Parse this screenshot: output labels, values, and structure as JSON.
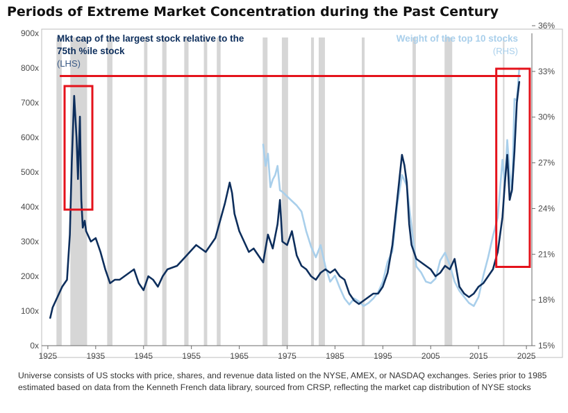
{
  "title": "Periods of Extreme Market Concentration during the Past Century",
  "footnote": "Universe consists of US stocks with price, shares, and revenue data listed on the NYSE, AMEX, or NASDAQ exchanges. Series prior to 1985 estimated based on data from the Kenneth French data library, sourced from CRSP, reflecting the market cap distribution of NYSE stocks",
  "chart_data": {
    "type": "line",
    "x_ticks": [
      "1925",
      "1935",
      "1945",
      "1955",
      "1965",
      "1975",
      "1985",
      "1995",
      "2005",
      "2015",
      "2025"
    ],
    "xlim": [
      1924,
      2026
    ],
    "y_left": {
      "ticks": [
        "0x",
        "100x",
        "200x",
        "300x",
        "400x",
        "500x",
        "600x",
        "700x",
        "800x",
        "900x"
      ],
      "lim": [
        0,
        900
      ]
    },
    "y_right": {
      "ticks": [
        "15%",
        "18%",
        "21%",
        "24%",
        "27%",
        "30%",
        "33%",
        "36%"
      ],
      "lim": [
        15,
        35.5
      ]
    },
    "legend_left": {
      "line1": "Mkt cap of the largest stock relative to the",
      "line2": "75th %ile stock",
      "line3": "(LHS)",
      "color": "#0d2e5c"
    },
    "legend_right": {
      "line1": "Weight of the top 10 stocks",
      "line2": "(RHS)",
      "color": "#a9cfeb"
    },
    "recessions": [
      [
        1926.8,
        1927.9
      ],
      [
        1929.7,
        1933.2
      ],
      [
        1937.4,
        1938.5
      ],
      [
        1945.1,
        1945.8
      ],
      [
        1948.9,
        1949.8
      ],
      [
        1953.5,
        1954.4
      ],
      [
        1957.6,
        1958.3
      ],
      [
        1960.3,
        1961.1
      ],
      [
        1969.9,
        1970.9
      ],
      [
        1973.9,
        1975.2
      ],
      [
        1980.0,
        1980.6
      ],
      [
        1981.6,
        1982.9
      ],
      [
        1990.6,
        1991.2
      ],
      [
        2001.2,
        2001.9
      ],
      [
        2007.9,
        2009.5
      ],
      [
        2020.1,
        2020.4
      ]
    ],
    "series": [
      {
        "name": "Mkt cap of the largest stock relative to the 75th %ile stock",
        "axis": "left",
        "color": "#0d2e5c",
        "x": [
          1925.5,
          1926,
          1927,
          1928,
          1929,
          1929.6,
          1930,
          1930.5,
          1931,
          1931.3,
          1931.7,
          1932,
          1932.3,
          1932.7,
          1933,
          1934,
          1935,
          1936,
          1937,
          1938,
          1939,
          1940,
          1942,
          1943,
          1944,
          1945,
          1946,
          1947,
          1948,
          1949,
          1950,
          1952,
          1954,
          1956,
          1958,
          1960,
          1961,
          1962,
          1963,
          1963.5,
          1964,
          1965,
          1966,
          1967,
          1968,
          1969,
          1970,
          1971,
          1972,
          1973,
          1973.5,
          1974,
          1975,
          1976,
          1977,
          1978,
          1979,
          1980,
          1981,
          1982,
          1983,
          1984,
          1985,
          1986,
          1987,
          1988,
          1989,
          1990,
          1991,
          1992,
          1993,
          1994,
          1995,
          1996,
          1997,
          1998,
          1999,
          1999.5,
          2000,
          2000.5,
          2001,
          2002,
          2003,
          2004,
          2005,
          2006,
          2007,
          2008,
          2009,
          2010,
          2011,
          2012,
          2013,
          2014,
          2015,
          2016,
          2017,
          2018,
          2019,
          2020,
          2020.5,
          2021,
          2021.5,
          2022,
          2022.5,
          2023,
          2023.5
        ],
        "values": [
          80,
          110,
          140,
          170,
          190,
          320,
          530,
          720,
          600,
          480,
          660,
          420,
          340,
          360,
          330,
          300,
          310,
          270,
          220,
          180,
          190,
          190,
          210,
          220,
          180,
          160,
          200,
          190,
          170,
          200,
          220,
          230,
          260,
          290,
          270,
          310,
          360,
          410,
          470,
          440,
          380,
          330,
          300,
          270,
          280,
          260,
          240,
          320,
          280,
          350,
          420,
          300,
          290,
          330,
          260,
          230,
          220,
          200,
          190,
          210,
          220,
          210,
          220,
          200,
          190,
          150,
          130,
          120,
          130,
          140,
          150,
          150,
          170,
          210,
          290,
          420,
          550,
          520,
          470,
          350,
          290,
          250,
          240,
          230,
          220,
          200,
          210,
          230,
          220,
          250,
          170,
          150,
          140,
          150,
          170,
          180,
          200,
          220,
          270,
          370,
          470,
          550,
          420,
          450,
          560,
          700,
          760
        ]
      },
      {
        "name": "Weight of the top 10 stocks",
        "axis": "right",
        "color": "#a9cfeb",
        "x": [
          1970,
          1970.5,
          1971,
          1971.5,
          1972,
          1972.5,
          1973,
          1973.5,
          1974,
          1975,
          1976,
          1977,
          1978,
          1979,
          1980,
          1981,
          1982,
          1983,
          1984,
          1985,
          1986,
          1987,
          1988,
          1989,
          1990,
          1991,
          1992,
          1993,
          1994,
          1995,
          1996,
          1997,
          1998,
          1999,
          2000,
          2001,
          2002,
          2003,
          2004,
          2005,
          2006,
          2007,
          2008,
          2009,
          2010,
          2011,
          2012,
          2013,
          2014,
          2015,
          2016,
          2017,
          2018,
          2019,
          2020,
          2020.5,
          2021,
          2021.5,
          2022,
          2022.5,
          2023,
          2023.5
        ],
        "values": [
          28.2,
          26.8,
          27.6,
          25.4,
          25.9,
          26.2,
          26.8,
          25.2,
          25.1,
          24.8,
          24.5,
          24.2,
          23.8,
          22.5,
          21.5,
          20.8,
          21.6,
          20.2,
          19.2,
          19.6,
          18.8,
          18.1,
          17.7,
          18.1,
          17.9,
          17.6,
          17.8,
          18.1,
          18.5,
          19.2,
          20.5,
          21.2,
          24.2,
          26.2,
          25.5,
          22.8,
          20.2,
          19.8,
          19.2,
          19.1,
          19.4,
          20.6,
          21.1,
          20.3,
          19.2,
          18.6,
          18.2,
          17.8,
          17.6,
          18.2,
          19.6,
          20.8,
          22.2,
          23.4,
          27.2,
          25.5,
          28.5,
          26.3,
          25.1,
          31.2,
          31.1,
          33.2
        ]
      }
    ],
    "highlight_color": "#e4121b"
  }
}
